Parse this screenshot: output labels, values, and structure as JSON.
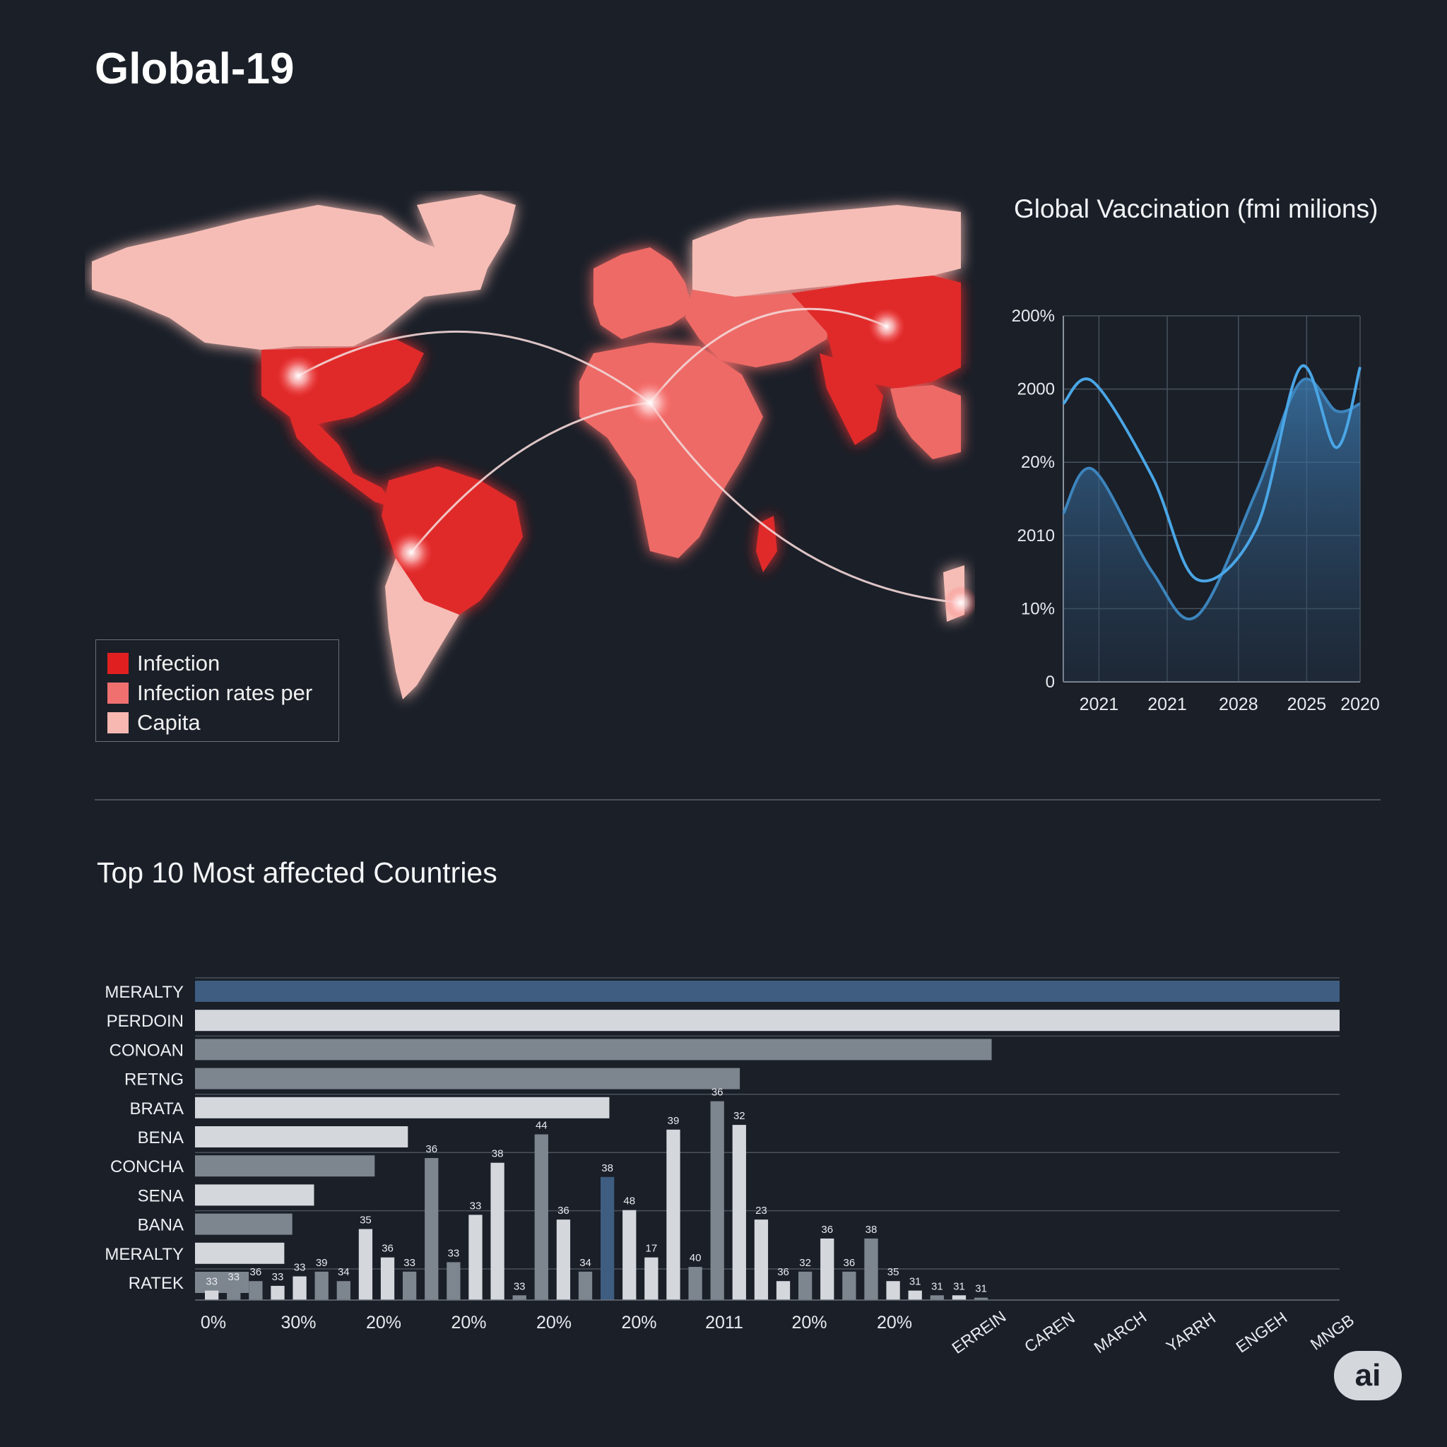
{
  "page": {
    "title": "Global-19"
  },
  "map": {
    "legend": [
      "Infection",
      "Infection rates per",
      "Capita"
    ],
    "legend_colors": [
      "#e02020",
      "#f07070",
      "#f7b8b2"
    ],
    "colors": {
      "ocean": "#1a1f28",
      "dark": "#e02a2a",
      "mid": "#ee6a66",
      "light": "#f6bdb6",
      "route": "#f3d6d6"
    }
  },
  "colors": {
    "background": "#1a1f28",
    "line_blue": "#4aa6e6",
    "line_blue_secondary": "#3c84bc",
    "bar_blue": "#3e5d80",
    "bar_white": "#d4d7dc",
    "bar_gray": "#7d858f"
  },
  "badge": "ai",
  "chart_data": [
    {
      "type": "line",
      "title": "Global Vaccination (fmi milions)",
      "ytick_labels": [
        "0",
        "10%",
        "2010",
        "20%",
        "2000",
        "200%"
      ],
      "xtick_labels": [
        "2021",
        "2021",
        "2028",
        "2025",
        "2020"
      ],
      "grid": true,
      "series": [
        {
          "values": [
            2.3,
            2.9,
            1.5,
            0.9,
            2.6,
            4.1,
            3.7,
            3.8
          ]
        },
        {
          "values": [
            3.8,
            4.1,
            2.8,
            1.4,
            2.1,
            4.3,
            3.2,
            4.3
          ]
        }
      ],
      "series_x": [
        0,
        0.1,
        0.3,
        0.45,
        0.65,
        0.8,
        0.92,
        1.0
      ]
    },
    {
      "type": "bar",
      "title": "Top 10 Most affected Countries",
      "orientation": "horizontal",
      "categories": [
        "MERALTY",
        "PERDOIN",
        "CONOAN",
        "RETNG",
        "BRATA",
        "BENA",
        "CONCHA",
        "SENA",
        "BANA",
        "MERALTY",
        "RATEK"
      ],
      "values": [
        100,
        100,
        69.6,
        47.6,
        36.2,
        18.6,
        15.7,
        10.4,
        8.5,
        7.8,
        4.7
      ],
      "bar_colors": [
        "blue",
        "white",
        "gray",
        "gray",
        "white",
        "white",
        "gray",
        "white",
        "gray",
        "white",
        "gray"
      ],
      "xtick_labels": [
        "0%",
        "30%",
        "20%",
        "20%",
        "20%",
        "20%",
        "2011",
        "20%",
        "20%"
      ],
      "extra_xtick_labels": [
        "ERREIN",
        "CAREN",
        "MARCH",
        "YARRH",
        "ENGEH",
        "MNGB"
      ]
    },
    {
      "type": "bar",
      "orientation": "vertical",
      "labels": [
        "33",
        "33",
        "36",
        "33",
        "33",
        "39",
        "34",
        "35",
        "36",
        "33",
        "36",
        "33",
        "33",
        "38",
        "33",
        "44",
        "36",
        "34",
        "38",
        "48",
        "17",
        "39",
        "40",
        "36",
        "32",
        "23",
        "36",
        "32",
        "36",
        "36",
        "38",
        "35",
        "31",
        "31",
        "31",
        "31"
      ],
      "values": [
        2,
        3,
        4,
        3,
        5,
        6,
        4,
        15,
        9,
        6,
        30,
        8,
        18,
        29,
        1,
        35,
        17,
        6,
        26,
        19,
        9,
        36,
        7,
        42,
        37,
        17,
        4,
        6,
        13,
        6,
        13,
        4,
        2,
        1,
        1,
        0.5
      ],
      "colors": [
        "white",
        "gray",
        "gray",
        "white",
        "white",
        "gray",
        "gray",
        "white",
        "white",
        "gray",
        "gray",
        "gray",
        "white",
        "white",
        "gray",
        "gray",
        "white",
        "gray",
        "blue",
        "white",
        "white",
        "white",
        "gray",
        "gray",
        "white",
        "white",
        "white",
        "gray",
        "white",
        "gray",
        "gray",
        "white",
        "white",
        "gray",
        "white",
        "gray"
      ]
    }
  ]
}
